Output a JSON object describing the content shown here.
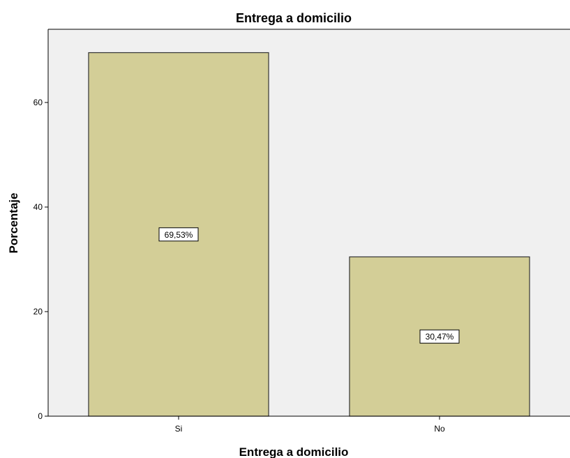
{
  "chart_data": {
    "type": "bar",
    "title": "Entrega a domicilio",
    "xlabel": "Entrega a domicilio",
    "ylabel": "Porcentaje",
    "categories": [
      "Si",
      "No"
    ],
    "values": [
      69.53,
      30.47
    ],
    "data_labels": [
      "69,53%",
      "30,47%"
    ],
    "ylim": [
      0,
      74
    ],
    "yticks": [
      0,
      20,
      40,
      60
    ],
    "ytick_labels": [
      "0",
      "20",
      "40",
      "60"
    ],
    "grid": false,
    "legend": "none",
    "colors": {
      "bar_fill": "#d3ce97",
      "bar_stroke": "#333333",
      "plot_background": "#f0f0f0",
      "label_box_fill": "#ffffff"
    }
  }
}
